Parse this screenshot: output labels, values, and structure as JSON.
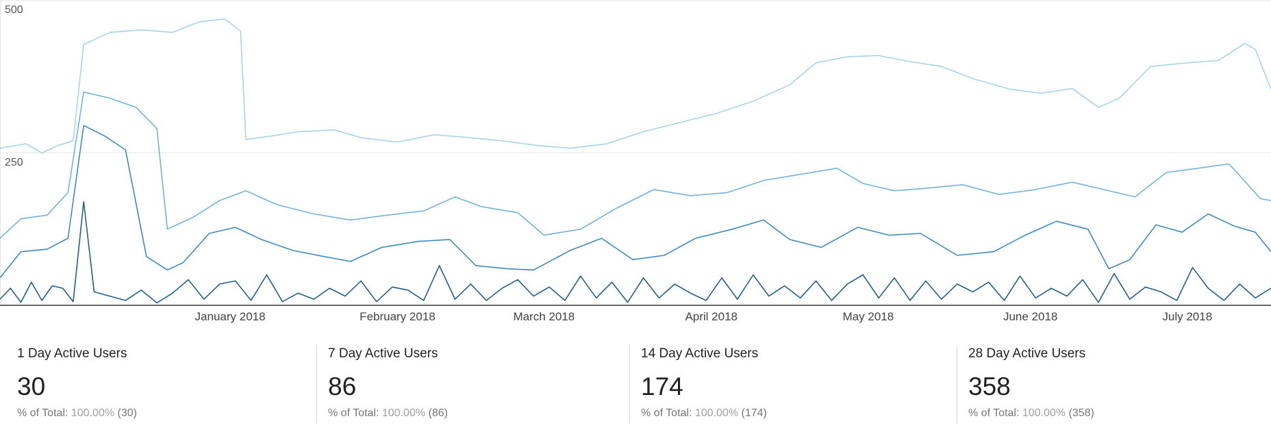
{
  "chart_data": {
    "type": "line",
    "title": "",
    "xlabel": "",
    "ylabel": "",
    "ylim": [
      0,
      500
    ],
    "y_ticks": [
      "500",
      "250"
    ],
    "y_tick_values": [
      500,
      250
    ],
    "grid": true,
    "x_domain": [
      "2017-12-01",
      "2018-08-01"
    ],
    "x_tick_labels": [
      "January 2018",
      "February 2018",
      "March 2018",
      "April 2018",
      "May 2018",
      "June 2018",
      "July 2018"
    ],
    "x_tick_dates": [
      "2018-01-14",
      "2018-02-15",
      "2018-03-15",
      "2018-04-16",
      "2018-05-16",
      "2018-06-16",
      "2018-07-16"
    ],
    "series": [
      {
        "name": "28 Day Active Users",
        "color": "#a6d4ea",
        "points": [
          [
            "2017-12-01",
            258
          ],
          [
            "2017-12-06",
            265
          ],
          [
            "2017-12-09",
            250
          ],
          [
            "2017-12-12",
            262
          ],
          [
            "2017-12-15",
            270
          ],
          [
            "2017-12-17",
            428
          ],
          [
            "2017-12-22",
            448
          ],
          [
            "2017-12-28",
            452
          ],
          [
            "2018-01-03",
            448
          ],
          [
            "2018-01-08",
            465
          ],
          [
            "2018-01-13",
            470
          ],
          [
            "2018-01-16",
            450
          ],
          [
            "2018-01-17",
            272
          ],
          [
            "2018-01-22",
            278
          ],
          [
            "2018-01-27",
            285
          ],
          [
            "2018-02-03",
            288
          ],
          [
            "2018-02-08",
            275
          ],
          [
            "2018-02-15",
            268
          ],
          [
            "2018-02-22",
            280
          ],
          [
            "2018-02-28",
            276
          ],
          [
            "2018-03-07",
            270
          ],
          [
            "2018-03-14",
            262
          ],
          [
            "2018-03-20",
            258
          ],
          [
            "2018-03-27",
            265
          ],
          [
            "2018-04-03",
            285
          ],
          [
            "2018-04-10",
            300
          ],
          [
            "2018-04-17",
            315
          ],
          [
            "2018-04-24",
            335
          ],
          [
            "2018-05-01",
            362
          ],
          [
            "2018-05-06",
            398
          ],
          [
            "2018-05-12",
            408
          ],
          [
            "2018-05-18",
            410
          ],
          [
            "2018-05-24",
            400
          ],
          [
            "2018-05-30",
            392
          ],
          [
            "2018-06-05",
            372
          ],
          [
            "2018-06-12",
            355
          ],
          [
            "2018-06-18",
            348
          ],
          [
            "2018-06-24",
            356
          ],
          [
            "2018-06-29",
            325
          ],
          [
            "2018-07-03",
            340
          ],
          [
            "2018-07-09",
            392
          ],
          [
            "2018-07-16",
            398
          ],
          [
            "2018-07-22",
            402
          ],
          [
            "2018-07-27",
            430
          ],
          [
            "2018-07-29",
            420
          ],
          [
            "2018-08-01",
            355
          ]
        ]
      },
      {
        "name": "14 Day Active Users",
        "color": "#6fb4d8",
        "points": [
          [
            "2017-12-01",
            110
          ],
          [
            "2017-12-05",
            142
          ],
          [
            "2017-12-10",
            148
          ],
          [
            "2017-12-14",
            185
          ],
          [
            "2017-12-17",
            350
          ],
          [
            "2017-12-22",
            340
          ],
          [
            "2017-12-27",
            325
          ],
          [
            "2017-12-31",
            290
          ],
          [
            "2018-01-02",
            125
          ],
          [
            "2018-01-07",
            145
          ],
          [
            "2018-01-12",
            172
          ],
          [
            "2018-01-17",
            188
          ],
          [
            "2018-01-23",
            165
          ],
          [
            "2018-01-30",
            150
          ],
          [
            "2018-02-06",
            140
          ],
          [
            "2018-02-13",
            148
          ],
          [
            "2018-02-20",
            155
          ],
          [
            "2018-02-26",
            178
          ],
          [
            "2018-03-03",
            162
          ],
          [
            "2018-03-10",
            152
          ],
          [
            "2018-03-15",
            115
          ],
          [
            "2018-03-22",
            125
          ],
          [
            "2018-03-29",
            160
          ],
          [
            "2018-04-05",
            190
          ],
          [
            "2018-04-12",
            180
          ],
          [
            "2018-04-19",
            185
          ],
          [
            "2018-04-26",
            205
          ],
          [
            "2018-05-03",
            215
          ],
          [
            "2018-05-10",
            225
          ],
          [
            "2018-05-15",
            200
          ],
          [
            "2018-05-21",
            188
          ],
          [
            "2018-05-27",
            192
          ],
          [
            "2018-06-03",
            198
          ],
          [
            "2018-06-10",
            182
          ],
          [
            "2018-06-17",
            190
          ],
          [
            "2018-06-24",
            202
          ],
          [
            "2018-06-30",
            190
          ],
          [
            "2018-07-06",
            178
          ],
          [
            "2018-07-12",
            218
          ],
          [
            "2018-07-18",
            225
          ],
          [
            "2018-07-24",
            232
          ],
          [
            "2018-07-30",
            175
          ],
          [
            "2018-08-01",
            172
          ]
        ]
      },
      {
        "name": "7 Day Active Users",
        "color": "#3a8bbf",
        "points": [
          [
            "2017-12-01",
            45
          ],
          [
            "2017-12-05",
            88
          ],
          [
            "2017-12-10",
            92
          ],
          [
            "2017-12-14",
            110
          ],
          [
            "2017-12-17",
            295
          ],
          [
            "2017-12-21",
            278
          ],
          [
            "2017-12-25",
            255
          ],
          [
            "2017-12-29",
            80
          ],
          [
            "2018-01-02",
            58
          ],
          [
            "2018-01-05",
            70
          ],
          [
            "2018-01-10",
            118
          ],
          [
            "2018-01-15",
            128
          ],
          [
            "2018-01-20",
            108
          ],
          [
            "2018-01-26",
            90
          ],
          [
            "2018-02-01",
            80
          ],
          [
            "2018-02-06",
            72
          ],
          [
            "2018-02-12",
            95
          ],
          [
            "2018-02-19",
            105
          ],
          [
            "2018-02-25",
            108
          ],
          [
            "2018-03-02",
            65
          ],
          [
            "2018-03-08",
            60
          ],
          [
            "2018-03-13",
            58
          ],
          [
            "2018-03-20",
            90
          ],
          [
            "2018-03-26",
            110
          ],
          [
            "2018-04-01",
            75
          ],
          [
            "2018-04-07",
            82
          ],
          [
            "2018-04-13",
            110
          ],
          [
            "2018-04-20",
            125
          ],
          [
            "2018-04-26",
            140
          ],
          [
            "2018-05-01",
            108
          ],
          [
            "2018-05-07",
            95
          ],
          [
            "2018-05-14",
            128
          ],
          [
            "2018-05-20",
            115
          ],
          [
            "2018-05-26",
            118
          ],
          [
            "2018-06-02",
            82
          ],
          [
            "2018-06-09",
            88
          ],
          [
            "2018-06-15",
            115
          ],
          [
            "2018-06-21",
            138
          ],
          [
            "2018-06-27",
            125
          ],
          [
            "2018-07-01",
            60
          ],
          [
            "2018-07-05",
            75
          ],
          [
            "2018-07-10",
            132
          ],
          [
            "2018-07-15",
            120
          ],
          [
            "2018-07-20",
            150
          ],
          [
            "2018-07-25",
            130
          ],
          [
            "2018-07-29",
            120
          ],
          [
            "2018-08-01",
            88
          ]
        ]
      },
      {
        "name": "1 Day Active Users",
        "color": "#1f5f8b",
        "points": [
          [
            "2017-12-01",
            10
          ],
          [
            "2017-12-03",
            28
          ],
          [
            "2017-12-05",
            5
          ],
          [
            "2017-12-07",
            38
          ],
          [
            "2017-12-09",
            8
          ],
          [
            "2017-12-11",
            32
          ],
          [
            "2017-12-13",
            28
          ],
          [
            "2017-12-15",
            6
          ],
          [
            "2017-12-17",
            170
          ],
          [
            "2017-12-19",
            22
          ],
          [
            "2017-12-22",
            15
          ],
          [
            "2017-12-25",
            8
          ],
          [
            "2017-12-28",
            25
          ],
          [
            "2017-12-31",
            4
          ],
          [
            "2018-01-03",
            20
          ],
          [
            "2018-01-06",
            42
          ],
          [
            "2018-01-09",
            10
          ],
          [
            "2018-01-12",
            35
          ],
          [
            "2018-01-15",
            40
          ],
          [
            "2018-01-18",
            8
          ],
          [
            "2018-01-21",
            50
          ],
          [
            "2018-01-24",
            6
          ],
          [
            "2018-01-27",
            20
          ],
          [
            "2018-01-30",
            10
          ],
          [
            "2018-02-02",
            28
          ],
          [
            "2018-02-05",
            15
          ],
          [
            "2018-02-08",
            40
          ],
          [
            "2018-02-11",
            6
          ],
          [
            "2018-02-14",
            30
          ],
          [
            "2018-02-17",
            25
          ],
          [
            "2018-02-20",
            8
          ],
          [
            "2018-02-23",
            65
          ],
          [
            "2018-02-26",
            10
          ],
          [
            "2018-03-01",
            35
          ],
          [
            "2018-03-04",
            8
          ],
          [
            "2018-03-07",
            28
          ],
          [
            "2018-03-10",
            42
          ],
          [
            "2018-03-13",
            15
          ],
          [
            "2018-03-16",
            30
          ],
          [
            "2018-03-19",
            8
          ],
          [
            "2018-03-22",
            48
          ],
          [
            "2018-03-25",
            12
          ],
          [
            "2018-03-28",
            38
          ],
          [
            "2018-03-31",
            5
          ],
          [
            "2018-04-03",
            45
          ],
          [
            "2018-04-06",
            12
          ],
          [
            "2018-04-09",
            35
          ],
          [
            "2018-04-12",
            20
          ],
          [
            "2018-04-15",
            8
          ],
          [
            "2018-04-18",
            45
          ],
          [
            "2018-04-21",
            10
          ],
          [
            "2018-04-24",
            50
          ],
          [
            "2018-04-27",
            15
          ],
          [
            "2018-04-30",
            32
          ],
          [
            "2018-05-03",
            12
          ],
          [
            "2018-05-06",
            40
          ],
          [
            "2018-05-09",
            8
          ],
          [
            "2018-05-12",
            35
          ],
          [
            "2018-05-15",
            50
          ],
          [
            "2018-05-18",
            12
          ],
          [
            "2018-05-21",
            45
          ],
          [
            "2018-05-24",
            8
          ],
          [
            "2018-05-27",
            40
          ],
          [
            "2018-05-30",
            10
          ],
          [
            "2018-06-02",
            35
          ],
          [
            "2018-06-05",
            22
          ],
          [
            "2018-06-08",
            38
          ],
          [
            "2018-06-11",
            8
          ],
          [
            "2018-06-14",
            48
          ],
          [
            "2018-06-17",
            12
          ],
          [
            "2018-06-20",
            28
          ],
          [
            "2018-06-23",
            15
          ],
          [
            "2018-06-26",
            42
          ],
          [
            "2018-06-29",
            5
          ],
          [
            "2018-07-02",
            52
          ],
          [
            "2018-07-05",
            10
          ],
          [
            "2018-07-08",
            30
          ],
          [
            "2018-07-11",
            22
          ],
          [
            "2018-07-14",
            8
          ],
          [
            "2018-07-17",
            62
          ],
          [
            "2018-07-20",
            28
          ],
          [
            "2018-07-23",
            8
          ],
          [
            "2018-07-26",
            35
          ],
          [
            "2018-07-29",
            12
          ],
          [
            "2018-08-01",
            28
          ]
        ]
      }
    ]
  },
  "metrics": [
    {
      "title": "1 Day Active Users",
      "value": "30",
      "sub_label": "% of Total:",
      "sub_pct": "100.00%",
      "sub_abs": "(30)"
    },
    {
      "title": "7 Day Active Users",
      "value": "86",
      "sub_label": "% of Total:",
      "sub_pct": "100.00%",
      "sub_abs": "(86)"
    },
    {
      "title": "14 Day Active Users",
      "value": "174",
      "sub_label": "% of Total:",
      "sub_pct": "100.00%",
      "sub_abs": "(174)"
    },
    {
      "title": "28 Day Active Users",
      "value": "358",
      "sub_label": "% of Total:",
      "sub_pct": "100.00%",
      "sub_abs": "(358)"
    }
  ]
}
